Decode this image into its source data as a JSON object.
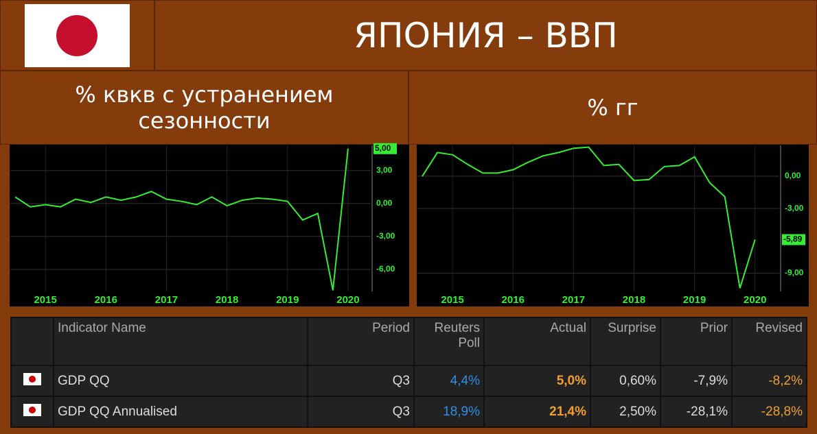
{
  "header": {
    "title": "ЯПОНИЯ – ВВП"
  },
  "chart_data": [
    {
      "type": "line",
      "title": "% квкв с устранением сезонности",
      "x": [
        2015,
        2015.25,
        2015.5,
        2015.75,
        2016,
        2016.25,
        2016.5,
        2016.75,
        2017,
        2017.25,
        2017.5,
        2017.75,
        2018,
        2018.25,
        2018.5,
        2018.75,
        2019,
        2019.25,
        2019.5,
        2019.75,
        2020,
        2020.25,
        2020.5
      ],
      "series": [
        {
          "color": "#33ee33",
          "values": [
            0.6,
            -0.3,
            -0.1,
            -0.3,
            0.4,
            0.1,
            0.6,
            0.3,
            0.6,
            1.1,
            0.4,
            0.2,
            -0.1,
            0.6,
            -0.2,
            0.3,
            0.5,
            0.4,
            0.2,
            -1.5,
            -0.9,
            -7.9,
            5.0
          ],
          "value_labels": [
            null,
            null,
            null,
            null,
            null,
            null,
            null,
            null,
            null,
            null,
            null,
            null,
            null,
            null,
            null,
            null,
            null,
            null,
            null,
            null,
            null,
            null,
            "5,00"
          ]
        }
      ],
      "xlim": [
        2014.92,
        2020.875
      ],
      "xticks": [
        {
          "value": 2015.5,
          "label": "2015"
        },
        {
          "value": 2016.5,
          "label": "2016"
        },
        {
          "value": 2017.5,
          "label": "2017"
        },
        {
          "value": 2018.5,
          "label": "2018"
        },
        {
          "value": 2019.5,
          "label": "2019"
        },
        {
          "value": 2020.5,
          "label": "2020"
        }
      ],
      "ylim": [
        -8,
        5.3
      ],
      "yticks": [
        {
          "value": 3,
          "label": "3,00"
        },
        {
          "value": 0,
          "label": "0,00"
        },
        {
          "value": -3,
          "label": "-3,00"
        },
        {
          "value": -6,
          "label": "-6,00"
        }
      ],
      "grid": true
    },
    {
      "type": "line",
      "title": "% гг",
      "x": [
        2015,
        2015.25,
        2015.5,
        2015.75,
        2016,
        2016.25,
        2016.5,
        2016.75,
        2017,
        2017.25,
        2017.5,
        2017.75,
        2018,
        2018.25,
        2018.5,
        2018.75,
        2019,
        2019.25,
        2019.5,
        2019.75,
        2020,
        2020.25,
        2020.5
      ],
      "series": [
        {
          "color": "#33ee33",
          "values": [
            0.0,
            2.2,
            2.0,
            1.1,
            0.3,
            0.3,
            0.6,
            1.3,
            1.9,
            2.2,
            2.6,
            2.7,
            1.0,
            1.1,
            -0.4,
            -0.3,
            0.9,
            1.0,
            1.8,
            -0.6,
            -1.9,
            -10.4,
            -5.89
          ],
          "value_labels": [
            null,
            null,
            null,
            null,
            null,
            null,
            null,
            null,
            null,
            null,
            null,
            null,
            null,
            null,
            null,
            null,
            null,
            null,
            null,
            null,
            null,
            null,
            "-5,89"
          ]
        }
      ],
      "xlim": [
        2014.92,
        2020.9
      ],
      "xticks": [
        {
          "value": 2015.5,
          "label": "2015"
        },
        {
          "value": 2016.5,
          "label": "2016"
        },
        {
          "value": 2017.5,
          "label": "2017"
        },
        {
          "value": 2018.5,
          "label": "2018"
        },
        {
          "value": 2019.5,
          "label": "2019"
        },
        {
          "value": 2020.5,
          "label": "2020"
        }
      ],
      "ylim": [
        -10.7,
        2.87
      ],
      "yticks": [
        {
          "value": 0,
          "label": "0,00"
        },
        {
          "value": -3,
          "label": "-3,00"
        },
        {
          "value": -9,
          "label": "-9,00"
        }
      ],
      "grid": true
    }
  ],
  "table": {
    "columns": [
      "Indicator Name",
      "Period",
      "Reuters Poll",
      "Actual",
      "Surprise",
      "Prior",
      "Revised"
    ],
    "rows": [
      [
        "GDP QQ",
        "Q3",
        "4,4%",
        "5,0%",
        "0,60%",
        "-7,9%",
        "-8,2%"
      ],
      [
        "GDP QQ Annualised",
        "Q3",
        "18,9%",
        "21,4%",
        "2,50%",
        "-28,1%",
        "-28,8%"
      ]
    ]
  }
}
